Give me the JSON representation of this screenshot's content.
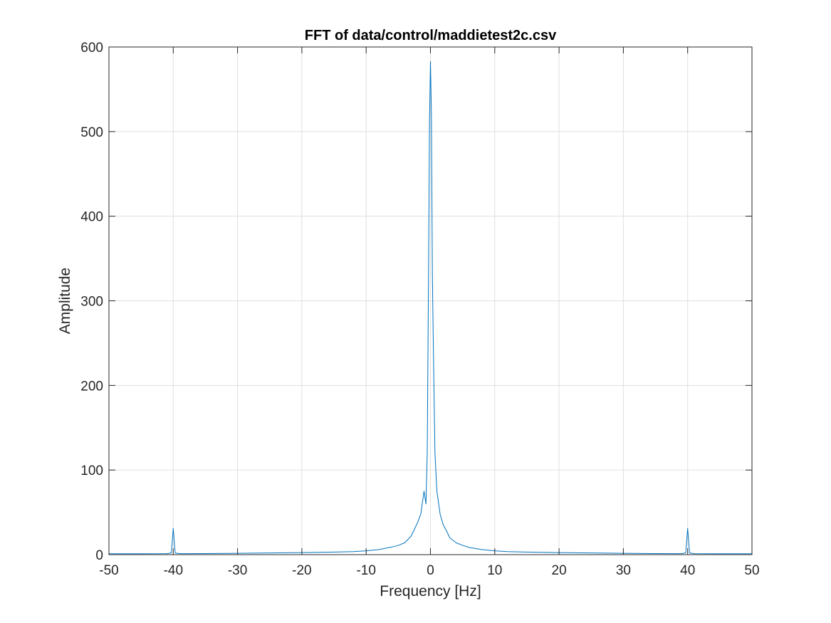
{
  "chart_data": {
    "type": "line",
    "title": "FFT of data/control/maddietest2c.csv",
    "xlabel": "Frequency [Hz]",
    "ylabel": "Amplitude",
    "xlim": [
      -50,
      50
    ],
    "ylim": [
      0,
      600
    ],
    "xticks": [
      -50,
      -40,
      -30,
      -20,
      -10,
      0,
      10,
      20,
      30,
      40,
      50
    ],
    "yticks": [
      0,
      100,
      200,
      300,
      400,
      500,
      600
    ],
    "grid": true,
    "line_color": "#0072BD",
    "series": [
      {
        "x": [
          -50,
          -45,
          -41,
          -40.3,
          -40,
          -39.7,
          -39,
          -35,
          -30,
          -25,
          -20,
          -15,
          -12,
          -10,
          -8,
          -6,
          -5,
          -4,
          -3,
          -2.5,
          -2,
          -1.5,
          -1,
          -0.7,
          -0.5,
          -0.3,
          -0.15,
          0,
          0.15,
          0.3,
          0.5,
          0.7,
          1,
          1.5,
          2,
          2.5,
          3,
          4,
          5,
          6,
          8,
          10,
          12,
          15,
          20,
          25,
          30,
          35,
          39,
          39.7,
          40,
          40.3,
          41,
          45,
          50
        ],
        "y": [
          1,
          1,
          1.2,
          2,
          31,
          2,
          1.2,
          1.3,
          1.6,
          2,
          2.4,
          3,
          3.6,
          4.5,
          6,
          9,
          11,
          14,
          22,
          30,
          38,
          48,
          75,
          60,
          120,
          330,
          510,
          583,
          520,
          330,
          220,
          120,
          75,
          48,
          35,
          28,
          20,
          14,
          11,
          8.5,
          6,
          4.5,
          3.6,
          3,
          2.4,
          2,
          1.6,
          1.3,
          1.2,
          2,
          31,
          2,
          1.2,
          1,
          1
        ]
      }
    ]
  }
}
